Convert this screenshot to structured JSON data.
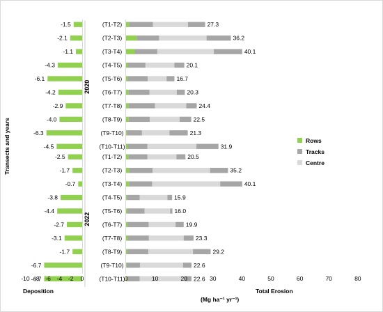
{
  "chart_data": {
    "type": "bar",
    "colors": {
      "rows": "#92d050",
      "tracks": "#a6a6a6",
      "centre": "#d9d9d9",
      "frame": "#bfbfbf"
    },
    "ylabel": "Transects and years",
    "left_xlabel": "Deposition",
    "right_xlabel": "Total Erosion",
    "unit": "(Mg ha⁻¹ yr⁻¹)",
    "left_ticks": [
      "-10",
      "-8",
      "-6",
      "-4",
      "-2",
      "0"
    ],
    "left_xlim": [
      -10,
      0
    ],
    "right_ticks": [
      "0",
      "10",
      "20",
      "30",
      "40",
      "50",
      "60",
      "70",
      "80"
    ],
    "right_xlim": [
      0,
      80
    ],
    "legend": [
      {
        "name": "Rows",
        "key": "rows"
      },
      {
        "name": "Tracks",
        "key": "tracks"
      },
      {
        "name": "Centre",
        "key": "centre"
      }
    ],
    "groups": [
      {
        "year": "2020",
        "rows": [
          {
            "label": "(T1-T2)",
            "deposition": -1.5,
            "dep_label": "-1.5",
            "rows": 1.0,
            "tracks": 8.3,
            "centre": 12.1,
            "tracks2": 5.9,
            "total": 27.3,
            "total_label": "27.3"
          },
          {
            "label": "(T2-T3)",
            "deposition": -2.1,
            "dep_label": "-2.1",
            "rows": 3.7,
            "tracks": 7.7,
            "centre": 16.4,
            "tracks2": 8.4,
            "total": 36.2,
            "total_label": "36.2"
          },
          {
            "label": "(T3-T4)",
            "deposition": -1.1,
            "dep_label": "-1.1",
            "rows": 3.0,
            "tracks": 7.8,
            "centre": 19.5,
            "tracks2": 9.8,
            "total": 40.1,
            "total_label": "40.1"
          },
          {
            "label": "(T4-T5)",
            "deposition": -4.3,
            "dep_label": "-4.3",
            "rows": 0.6,
            "tracks": 6.1,
            "centre": 10.0,
            "tracks2": 3.4,
            "total": 20.1,
            "total_label": "20.1"
          },
          {
            "label": "(T5-T6)",
            "deposition": -6.1,
            "dep_label": "-6.1",
            "rows": 0.5,
            "tracks": 7.0,
            "centre": 6.5,
            "tracks2": 2.7,
            "total": 16.7,
            "total_label": "16.7"
          },
          {
            "label": "(T6-T7)",
            "deposition": -4.2,
            "dep_label": "-4.2",
            "rows": 0.8,
            "tracks": 7.3,
            "centre": 9.4,
            "tracks2": 2.8,
            "total": 20.3,
            "total_label": "20.3"
          },
          {
            "label": "(T7-T8)",
            "deposition": -2.9,
            "dep_label": "-2.9",
            "rows": 0.8,
            "tracks": 9.2,
            "centre": 10.8,
            "tracks2": 3.6,
            "total": 24.4,
            "total_label": "24.4"
          },
          {
            "label": "(T8-T9)",
            "deposition": -4.0,
            "dep_label": "-4.0",
            "rows": 0.9,
            "tracks": 7.3,
            "centre": 10.3,
            "tracks2": 4.0,
            "total": 22.5,
            "total_label": "22.5"
          },
          {
            "label": "(T9-T10)",
            "deposition": -6.3,
            "dep_label": "-6.3",
            "rows": 0.3,
            "tracks": 5.2,
            "centre": 9.5,
            "tracks2": 6.3,
            "total": 21.3,
            "total_label": "21.3"
          },
          {
            "label": "(T10-T11)",
            "deposition": -4.5,
            "dep_label": "-4.5",
            "rows": 0.6,
            "tracks": 6.8,
            "centre": 16.9,
            "tracks2": 7.6,
            "total": 31.9,
            "total_label": "31.9"
          }
        ]
      },
      {
        "year": "2022",
        "rows": [
          {
            "label": "(T1-T2)",
            "deposition": -2.5,
            "dep_label": "-2.5",
            "rows": 0.8,
            "tracks": 6.6,
            "centre": 10.0,
            "tracks2": 3.1,
            "total": 20.5,
            "total_label": "20.5"
          },
          {
            "label": "(T2-T3)",
            "deposition": -1.7,
            "dep_label": "-1.7",
            "rows": 1.0,
            "tracks": 8.2,
            "centre": 19.8,
            "tracks2": 6.2,
            "total": 35.2,
            "total_label": "35.2"
          },
          {
            "label": "(T3-T4)",
            "deposition": -0.7,
            "dep_label": "-0.7",
            "rows": 1.0,
            "tracks": 8.0,
            "centre": 23.5,
            "tracks2": 7.6,
            "total": 40.1,
            "total_label": "40.1"
          },
          {
            "label": "(T4-T5)",
            "deposition": -3.8,
            "dep_label": "-3.8",
            "rows": 0.3,
            "tracks": 4.4,
            "centre": 9.6,
            "tracks2": 1.6,
            "total": 15.9,
            "total_label": "15.9"
          },
          {
            "label": "(T5-T6)",
            "deposition": -4.4,
            "dep_label": "-4.4",
            "rows": 0.4,
            "tracks": 6.0,
            "centre": 8.8,
            "tracks2": 0.8,
            "total": 16.0,
            "total_label": "16.0"
          },
          {
            "label": "(T6-T7)",
            "deposition": -2.7,
            "dep_label": "-2.7",
            "rows": 0.5,
            "tracks": 7.3,
            "centre": 9.3,
            "tracks2": 2.8,
            "total": 19.9,
            "total_label": "19.9"
          },
          {
            "label": "(T7-T8)",
            "deposition": -3.1,
            "dep_label": "-3.1",
            "rows": 0.6,
            "tracks": 7.3,
            "centre": 12.0,
            "tracks2": 3.4,
            "total": 23.3,
            "total_label": "23.3"
          },
          {
            "label": "(T8-T9)",
            "deposition": -1.7,
            "dep_label": "-1.7",
            "rows": 0.4,
            "tracks": 7.3,
            "centre": 15.4,
            "tracks2": 6.1,
            "total": 29.2,
            "total_label": "29.2"
          },
          {
            "label": "(T9-T10)",
            "deposition": -6.7,
            "dep_label": "-6.7",
            "rows": 0.2,
            "tracks": 4.6,
            "centre": 14.9,
            "tracks2": 2.9,
            "total": 22.6,
            "total_label": "22.6"
          },
          {
            "label": "(T10-T11)",
            "deposition": -6.7,
            "dep_label": "-6.7",
            "rows": 0.3,
            "tracks": 4.4,
            "centre": 15.5,
            "tracks2": 2.4,
            "total": 22.6,
            "total_label": "22.6"
          }
        ]
      }
    ]
  }
}
